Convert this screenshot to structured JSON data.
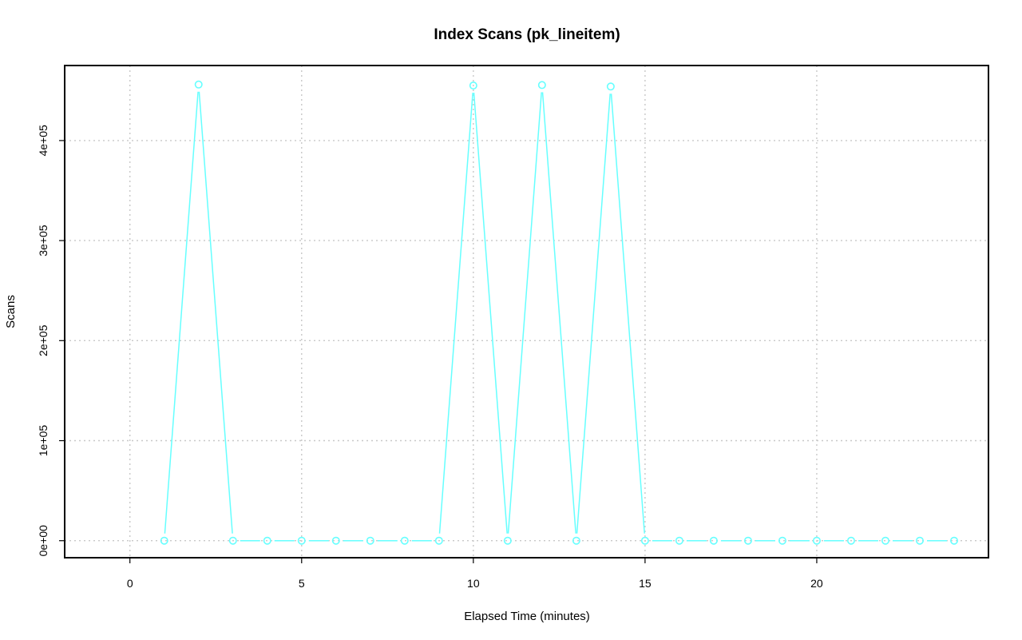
{
  "chart_data": {
    "type": "line",
    "title": "Index Scans (pk_lineitem)",
    "xlabel": "Elapsed Time (minutes)",
    "ylabel": "Scans",
    "xlim": [
      -1.9,
      25
    ],
    "ylim": [
      -17000,
      475000
    ],
    "x_ticks": [
      0,
      5,
      10,
      15,
      20
    ],
    "x_tick_labels": [
      "0",
      "5",
      "10",
      "15",
      "20"
    ],
    "y_ticks": [
      0,
      100000,
      200000,
      300000,
      400000
    ],
    "y_tick_labels": [
      "0e+00",
      "1e+05",
      "2e+05",
      "3e+05",
      "4e+05"
    ],
    "grid": true,
    "series": [
      {
        "color": "#66ffff",
        "marker": "open-circle",
        "x": [
          1,
          2,
          3,
          4,
          5,
          6,
          7,
          8,
          9,
          10,
          11,
          12,
          13,
          14,
          15,
          16,
          17,
          18,
          19,
          20,
          21,
          22,
          23,
          24
        ],
        "y": [
          0,
          456000,
          0,
          0,
          0,
          0,
          0,
          0,
          0,
          455000,
          0,
          455500,
          0,
          454000,
          0,
          0,
          0,
          0,
          0,
          0,
          0,
          0,
          0,
          0
        ]
      }
    ]
  }
}
